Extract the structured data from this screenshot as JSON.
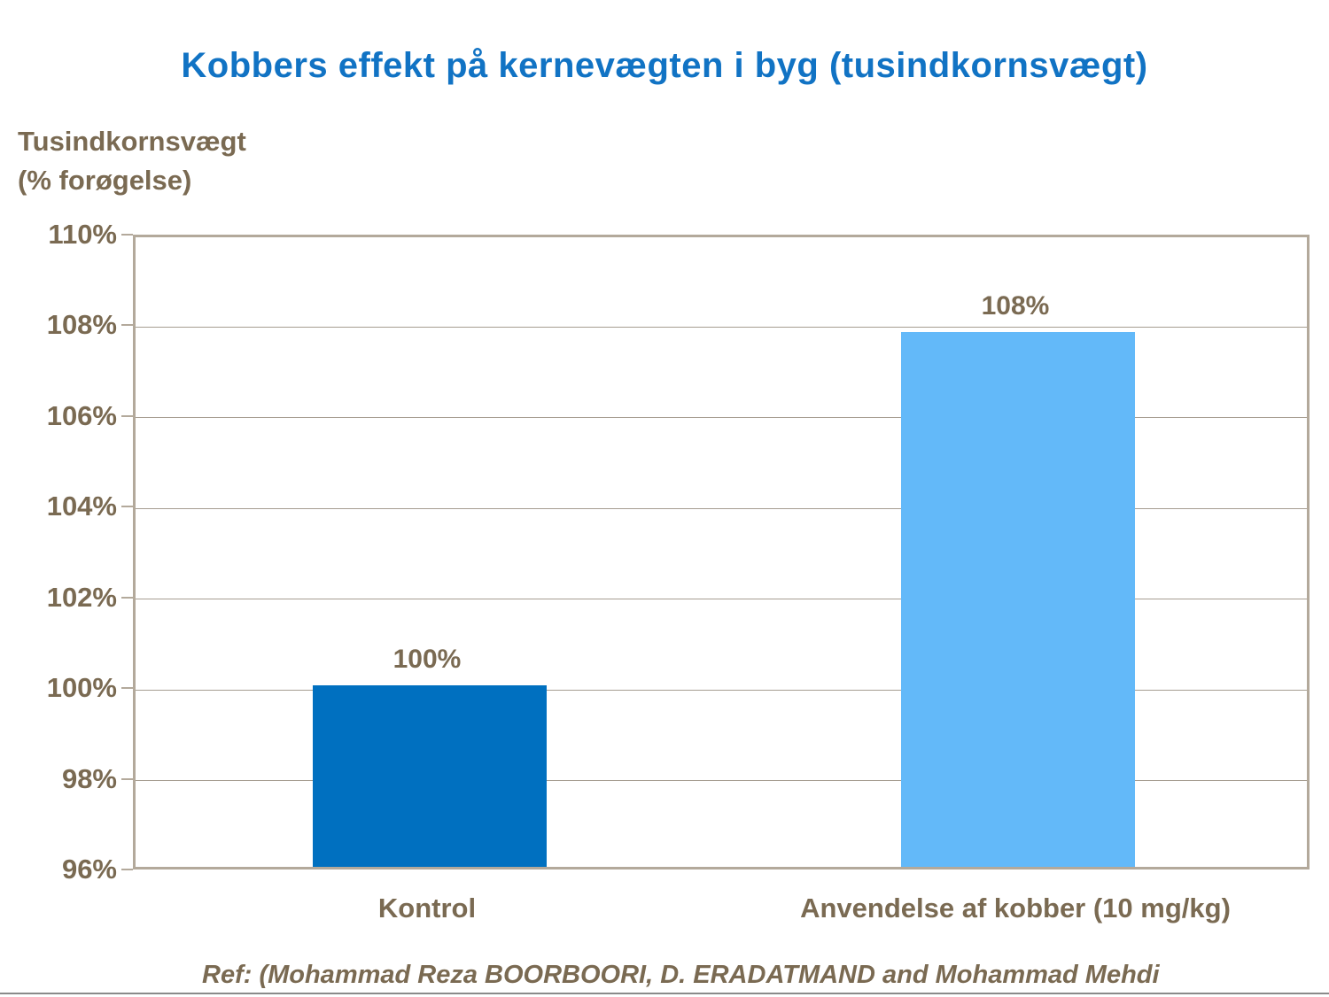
{
  "title": "Kobbers effekt på kernevægten i byg (tusindkornsvægt)",
  "axis_title": {
    "line1": "Tusindkornsvægt",
    "line2": "(% forøgelse)"
  },
  "footer": {
    "ref_text": "Ref: (Mohammad Reza BOORBOORI, D. ERADATMAND and Mohammad Mehdi"
  },
  "colors": {
    "title_blue": "#1173c4",
    "text_brown": "#7a6a52",
    "bar_kontrol": "#0070c0",
    "bar_kobber": "#63b9f9",
    "plot_border": "#b3a99b",
    "gridline": "#a69d91",
    "bottom_rule": "#8a8a8a"
  },
  "chart_data": {
    "type": "bar",
    "title": "Kobbers effekt på kernevægten i byg (tusindkornsvægt)",
    "xlabel": "",
    "ylabel": "Tusindkornsvægt (% forøgelse)",
    "categories": [
      "Kontrol",
      "Anvendelse af kobber (10 mg/kg)"
    ],
    "values": [
      100,
      107.8
    ],
    "value_labels": [
      "100%",
      "108%"
    ],
    "bar_colors": [
      "#0070c0",
      "#63b9f9"
    ],
    "ylim": [
      96,
      110
    ],
    "ytick_step": 2,
    "ytick_labels": [
      "96%",
      "98%",
      "100%",
      "102%",
      "104%",
      "106%",
      "108%",
      "110%"
    ],
    "grid": true,
    "legend_position": "none"
  }
}
